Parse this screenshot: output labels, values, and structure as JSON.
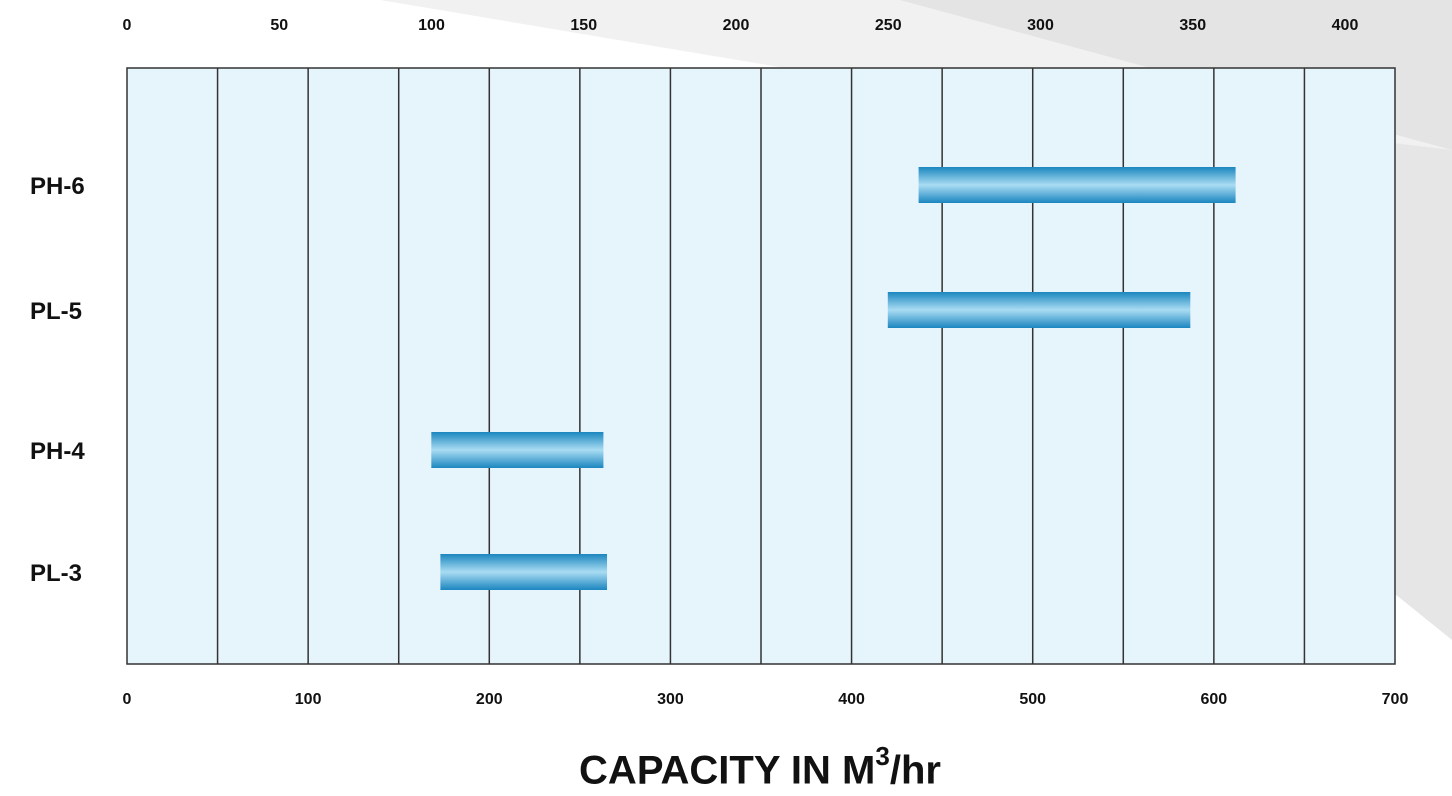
{
  "chart_data": {
    "type": "bar",
    "subtype": "horizontal-range",
    "categories": [
      "PH-6",
      "PL-5",
      "PH-4",
      "PL-3"
    ],
    "ranges": [
      {
        "category": "PH-6",
        "start": 437,
        "end": 612
      },
      {
        "category": "PL-5",
        "start": 420,
        "end": 587
      },
      {
        "category": "PH-4",
        "start": 168,
        "end": 263
      },
      {
        "category": "PL-3",
        "start": 173,
        "end": 265
      }
    ],
    "bottom_axis": {
      "range": [
        0,
        700
      ],
      "tick_values": [
        0,
        100,
        200,
        300,
        400,
        500,
        600,
        700
      ],
      "tick_labels": [
        "0",
        "100",
        "200",
        "300",
        "400",
        "500",
        "600",
        "700"
      ]
    },
    "top_axis": {
      "range": [
        0,
        400
      ],
      "tick_labels": [
        "0",
        "50",
        "100",
        "150",
        "200",
        "250",
        "300",
        "350",
        "400"
      ]
    },
    "gridline_step": 50,
    "grid": true,
    "xlabel_main": "CAPACITY IN M",
    "xlabel_sup": "3",
    "xlabel_suffix": "/hr",
    "colors": {
      "plot_background": "#e6f4fb",
      "bar_dark": "#1b86bf",
      "bar_light": "#a9dcf3",
      "gridline": "#333333",
      "decor_gray": "#dcdcdd"
    }
  }
}
